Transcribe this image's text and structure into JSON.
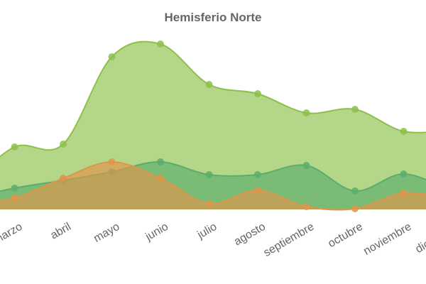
{
  "chart_data": {
    "type": "area",
    "title": "Hemisferio Norte",
    "categories": [
      null,
      "marzo",
      "abril",
      "mayo",
      "junio",
      "julio",
      "agosto",
      "septiembre",
      "octubre",
      "noviembre",
      "diciembre"
    ],
    "series": [
      {
        "color": "#8cc04a",
        "values": [
          30,
          88,
          92,
          215,
          233,
          176,
          163,
          136,
          141,
          110,
          112
        ]
      },
      {
        "color": "#5aae6b",
        "values": [
          15,
          30,
          41,
          53,
          67,
          49,
          49,
          62,
          26,
          50,
          25
        ]
      },
      {
        "color": "#e0954a",
        "values": [
          5,
          16,
          44,
          67,
          44,
          8,
          27,
          4,
          1,
          23,
          15
        ]
      }
    ],
    "ylim": [
      0,
      250
    ]
  }
}
